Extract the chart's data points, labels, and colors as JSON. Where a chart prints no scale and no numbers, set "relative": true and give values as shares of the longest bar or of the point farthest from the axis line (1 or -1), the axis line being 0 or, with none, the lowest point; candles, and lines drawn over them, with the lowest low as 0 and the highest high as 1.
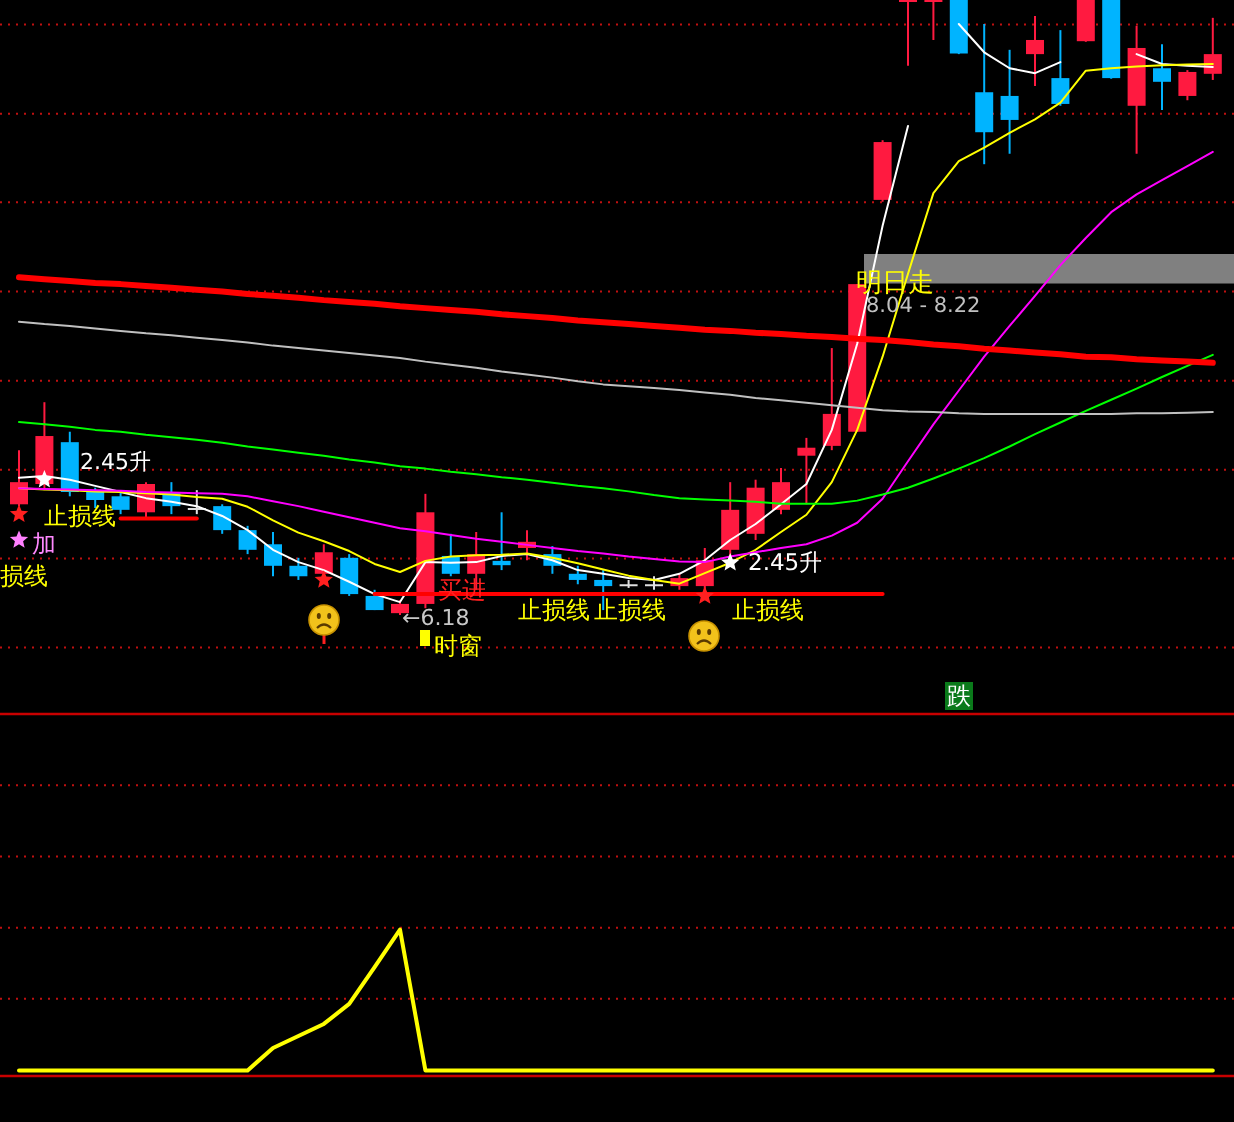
{
  "chart_data": [
    {
      "type": "candlestick",
      "relative": true,
      "categories": [
        null,
        null,
        null,
        null,
        null,
        null,
        null,
        null,
        null,
        null,
        null,
        null,
        null,
        null,
        null,
        null,
        null,
        null,
        null,
        null,
        null,
        null,
        null,
        null,
        null,
        null,
        null,
        null,
        null,
        null,
        null,
        null,
        null,
        null,
        null,
        null,
        null,
        null,
        null,
        null,
        null,
        null,
        null,
        null,
        null,
        null,
        null,
        null
      ],
      "ohlc": [
        [
          0.18,
          0.268,
          0.177,
          0.216
        ],
        [
          0.213,
          0.346,
          0.203,
          0.291
        ],
        [
          0.281,
          0.298,
          0.193,
          0.2
        ],
        [
          0.2,
          0.207,
          0.174,
          0.187
        ],
        [
          0.193,
          0.2,
          0.164,
          0.171
        ],
        [
          0.167,
          0.216,
          0.158,
          0.213
        ],
        [
          0.2,
          0.216,
          0.164,
          0.177
        ],
        [
          0.174,
          0.203,
          0.164,
          0.174
        ],
        [
          0.177,
          0.18,
          0.132,
          0.138
        ],
        [
          0.138,
          0.145,
          0.099,
          0.106
        ],
        [
          0.115,
          0.135,
          0.063,
          0.08
        ],
        [
          0.08,
          0.093,
          0.057,
          0.063
        ],
        [
          0.067,
          0.115,
          0.057,
          0.102
        ],
        [
          0.093,
          0.099,
          0.031,
          0.034
        ],
        [
          0.031,
          0.041,
          0.008,
          0.008
        ],
        [
          0.003,
          0.024,
          0,
          0.018
        ],
        [
          0.018,
          0.197,
          0.011,
          0.167
        ],
        [
          0.096,
          0.132,
          0.063,
          0.067
        ],
        [
          0.067,
          0.135,
          0.041,
          0.099
        ],
        [
          0.088,
          0.167,
          0.073,
          0.081
        ],
        [
          0.109,
          0.138,
          0.089,
          0.119
        ],
        [
          0.099,
          0.112,
          0.067,
          0.08
        ],
        [
          0.067,
          0.08,
          0.05,
          0.057
        ],
        [
          0.057,
          0.073,
          0.008,
          0.047
        ],
        [
          0.05,
          0.057,
          0.044,
          0.05
        ],
        [
          0.05,
          0.063,
          0.041,
          0.05
        ],
        [
          0.047,
          0.067,
          0.041,
          0.06
        ],
        [
          0.047,
          0.109,
          0.024,
          0.089
        ],
        [
          0.106,
          0.216,
          0.089,
          0.171
        ],
        [
          0.132,
          0.22,
          0.122,
          0.207
        ],
        [
          0.171,
          0.239,
          0.164,
          0.216
        ],
        [
          0.259,
          0.288,
          0.18,
          0.272
        ],
        [
          0.275,
          0.434,
          0.268,
          0.327
        ],
        [
          0.298,
          0.538,
          0.298,
          0.538
        ],
        [
          0.675,
          0.772,
          0.672,
          0.769
        ],
        [
          1,
          1,
          0.893,
          1
        ],
        [
          1,
          1,
          0.935,
          1
        ],
        [
          1,
          1,
          0.912,
          0.913
        ],
        [
          0.85,
          0.961,
          0.733,
          0.785
        ],
        [
          0.844,
          0.919,
          0.75,
          0.805
        ],
        [
          0.912,
          0.974,
          0.86,
          0.935
        ],
        [
          0.873,
          0.951,
          0.828,
          0.831
        ],
        [
          0.933,
          1,
          0.932,
          1
        ],
        [
          1,
          1,
          0.872,
          0.873
        ],
        [
          0.828,
          0.958,
          0.75,
          0.922
        ],
        [
          0.889,
          0.928,
          0.821,
          0.867
        ],
        [
          0.844,
          0.886,
          0.837,
          0.883
        ],
        [
          0.88,
          0.971,
          0.87,
          0.912
        ]
      ],
      "colors": [
        "#ff1a40",
        "#ff1a40",
        "#00b4ff",
        "#00b4ff",
        "#00b4ff",
        "#ff1a40",
        "#00b4ff",
        "#e0e0e0",
        "#00b4ff",
        "#00b4ff",
        "#00b4ff",
        "#00b4ff",
        "#ff1a40",
        "#00b4ff",
        "#00b4ff",
        "#ff1a40",
        "#ff1a40",
        "#00b4ff",
        "#ff1a40",
        "#00b4ff",
        "#ff1a40",
        "#00b4ff",
        "#00b4ff",
        "#00b4ff",
        "#e0e0e0",
        "#e0e0e0",
        "#ff1a40",
        "#ff1a40",
        "#ff1a40",
        "#ff1a40",
        "#ff1a40",
        "#ff1a40",
        "#ff1a40",
        "#ff1a40",
        "#ff1a40",
        "#ff1a40",
        "#ff1a40",
        "#00b4ff",
        "#00b4ff",
        "#00b4ff",
        "#ff1a40",
        "#00b4ff",
        "#ff1a40",
        "#00b4ff",
        "#ff1a40",
        "#00b4ff",
        "#ff1a40",
        "#ff1a40"
      ],
      "series": [
        {
          "type": "line",
          "color": "#ffffff",
          "values": [
            0.223,
            0.226,
            0.22,
            0.21,
            0.2,
            0.19,
            0.184,
            0.177,
            0.161,
            0.138,
            0.106,
            0.086,
            0.073,
            0.054,
            0.034,
            0.021,
            0.086,
            0.085,
            0.086,
            0.096,
            0.099,
            0.089,
            0.073,
            0.067,
            0.06,
            0.057,
            0.067,
            0.089,
            0.122,
            0.148,
            0.18,
            0.213,
            0.301,
            0.441,
            0.633,
            0.795,
            null,
            0.961,
            0.915,
            0.889,
            0.881,
            0.899,
            null,
            null,
            0.912,
            0.896,
            0.893,
            0.891
          ]
        },
        {
          "type": "line",
          "color": "#ffff00",
          "values": [
            0.206,
            0.204,
            0.203,
            0.201,
            0.2,
            0.198,
            0.196,
            0.192,
            0.189,
            0.176,
            0.154,
            0.134,
            0.12,
            0.104,
            0.083,
            0.07,
            0.088,
            0.095,
            0.097,
            0.098,
            0.1,
            0.093,
            0.084,
            0.074,
            0.064,
            0.057,
            0.051,
            0.068,
            0.085,
            0.106,
            0.135,
            0.163,
            0.216,
            0.301,
            0.42,
            0.555,
            0.686,
            0.738,
            0.76,
            0.784,
            0.806,
            0.833,
            0.885,
            0.889,
            0.892,
            0.894,
            0.895,
            0.896
          ]
        },
        {
          "type": "line",
          "color": "#ff00ff",
          "values": [
            0.206,
            0.205,
            0.204,
            0.203,
            0.202,
            0.2,
            0.199,
            0.198,
            0.197,
            0.193,
            0.185,
            0.177,
            0.168,
            0.159,
            0.15,
            0.141,
            0.136,
            0.13,
            0.124,
            0.119,
            0.114,
            0.109,
            0.104,
            0.1,
            0.095,
            0.091,
            0.087,
            0.086,
            0.095,
            0.102,
            0.109,
            0.115,
            0.129,
            0.15,
            0.189,
            0.25,
            0.31,
            0.365,
            0.42,
            0.47,
            0.519,
            0.569,
            0.613,
            0.655,
            0.684,
            0.707,
            0.73,
            0.753
          ]
        },
        {
          "type": "line",
          "color": "#00ff00",
          "values": [
            0.314,
            0.31,
            0.306,
            0.301,
            0.298,
            0.293,
            0.289,
            0.285,
            0.28,
            0.274,
            0.269,
            0.264,
            0.259,
            0.253,
            0.248,
            0.242,
            0.238,
            0.233,
            0.229,
            0.224,
            0.22,
            0.215,
            0.21,
            0.206,
            0.201,
            0.195,
            0.19,
            0.188,
            0.186,
            0.184,
            0.181,
            0.181,
            0.181,
            0.186,
            0.196,
            0.207,
            0.222,
            0.238,
            0.255,
            0.274,
            0.294,
            0.313,
            0.332,
            0.35,
            0.368,
            0.387,
            0.405,
            0.423
          ]
        },
        {
          "type": "line",
          "color": "#c0c0c0",
          "values": [
            0.477,
            0.473,
            0.47,
            0.466,
            0.462,
            0.458,
            0.455,
            0.451,
            0.447,
            0.443,
            0.438,
            0.434,
            0.43,
            0.426,
            0.422,
            0.418,
            0.412,
            0.407,
            0.402,
            0.396,
            0.391,
            0.386,
            0.38,
            0.375,
            0.372,
            0.369,
            0.366,
            0.362,
            0.358,
            0.353,
            0.349,
            0.345,
            0.341,
            0.337,
            0.333,
            0.331,
            0.33,
            0.328,
            0.327,
            0.327,
            0.327,
            0.327,
            0.327,
            0.327,
            0.328,
            0.328,
            0.329,
            0.33
          ]
        },
        {
          "type": "line",
          "color": "#ff0000",
          "values": [
            0.549,
            0.546,
            0.543,
            0.54,
            0.538,
            0.535,
            0.532,
            0.529,
            0.526,
            0.522,
            0.519,
            0.516,
            0.512,
            0.509,
            0.506,
            0.502,
            0.499,
            0.496,
            0.493,
            0.489,
            0.486,
            0.483,
            0.479,
            0.476,
            0.473,
            0.47,
            0.467,
            0.464,
            0.462,
            0.459,
            0.457,
            0.454,
            0.452,
            0.449,
            0.447,
            0.444,
            0.44,
            0.437,
            0.433,
            0.43,
            0.427,
            0.424,
            0.42,
            0.419,
            0.416,
            0.414,
            0.412,
            0.41
          ]
        },
        {
          "type": "line",
          "color": "#ff0000",
          "values": [
            null,
            null,
            null,
            null,
            0.157,
            0.157,
            0.157,
            0.157,
            null,
            null,
            null,
            null,
            null,
            null,
            null,
            null,
            null,
            null,
            null,
            null,
            null,
            null,
            null,
            null,
            null,
            null,
            null,
            null,
            null,
            null,
            null,
            null,
            null,
            null,
            null,
            null,
            null,
            null,
            null,
            null,
            null,
            null,
            null,
            null,
            null,
            null,
            null,
            null
          ]
        },
        {
          "type": "line",
          "color": "#ff0000",
          "values": [
            null,
            null,
            null,
            null,
            null,
            null,
            null,
            null,
            null,
            null,
            null,
            null,
            null,
            null,
            0.034,
            0.034,
            0.034,
            0.034,
            0.034,
            0.034,
            0.034,
            0.034,
            0.034,
            0.034,
            0.034,
            0.034,
            0.034,
            0.034,
            0.034,
            0.034,
            0.034,
            0.034,
            0.034,
            0.034,
            0.034,
            null,
            null,
            null,
            null,
            null,
            null,
            null,
            null,
            null,
            null,
            null,
            null,
            null
          ]
        },
        {
          "type": "scatter",
          "marker": "star",
          "color": "#ff2020",
          "values": [
            0.164,
            null,
            null,
            null,
            null,
            null,
            null,
            null,
            null,
            null,
            null,
            null,
            0.057,
            null,
            null,
            null,
            null,
            null,
            null,
            null,
            null,
            null,
            null,
            null,
            null,
            null,
            null,
            0.031,
            null,
            null,
            null,
            null,
            null,
            null,
            null,
            null,
            null,
            null,
            null,
            null,
            null,
            null,
            null,
            null,
            null,
            null,
            null,
            null
          ]
        },
        {
          "type": "scatter",
          "marker": "star",
          "color": "#ffffff",
          "values": [
            null,
            0.22,
            null,
            null,
            null,
            null,
            null,
            null,
            null,
            null,
            null,
            null,
            null,
            null,
            null,
            null,
            null,
            null,
            null,
            null,
            null,
            null,
            null,
            null,
            null,
            null,
            null,
            null,
            0.085,
            null,
            null,
            null,
            null,
            null,
            null,
            null,
            null,
            null,
            null,
            null,
            null,
            null,
            null,
            null,
            null,
            null,
            null,
            null
          ]
        },
        {
          "type": "scatter",
          "marker": "star",
          "color": "#ff80ff",
          "values": [
            0.122,
            null,
            null,
            null,
            null,
            null,
            null,
            null,
            null,
            null,
            null,
            null,
            null,
            null,
            null,
            null,
            null,
            null,
            null,
            null,
            null,
            null,
            null,
            null,
            null,
            null,
            null,
            null,
            null,
            null,
            null,
            null,
            null,
            null,
            null,
            null,
            null,
            null,
            null,
            null,
            null,
            null,
            null,
            null,
            null,
            null,
            null,
            null
          ]
        }
      ],
      "bands": [
        {
          "axis": "y",
          "from": 0.539,
          "to": 0.587,
          "color": "#808080"
        }
      ],
      "ref_lines": [
        {
          "axis": "y",
          "value": 0.96,
          "color": "#c01010",
          "line_style": "dotted"
        },
        {
          "axis": "y",
          "value": 0.815,
          "color": "#c01010",
          "line_style": "dotted"
        },
        {
          "axis": "y",
          "value": 0.671,
          "color": "#c01010",
          "line_style": "dotted"
        },
        {
          "axis": "y",
          "value": 0.526,
          "color": "#c01010",
          "line_style": "dotted"
        },
        {
          "axis": "y",
          "value": 0.381,
          "color": "#c01010",
          "line_style": "dotted"
        },
        {
          "axis": "y",
          "value": 0.236,
          "color": "#c01010",
          "line_style": "dotted"
        },
        {
          "axis": "y",
          "value": 0.092,
          "color": "#c01010",
          "line_style": "dotted"
        },
        {
          "axis": "y",
          "value": -0.053,
          "color": "#c01010",
          "line_style": "dotted"
        }
      ],
      "annotations": [
        "损线",
        {
          "text": "2.45升",
          "y": 0.22
        },
        "止损线",
        "加",
        "买进",
        "←6.18",
        "时窗",
        {
          "text": "止损线",
          "y": 0.034
        },
        {
          "text": "止损线",
          "y": 0.034
        },
        "2.45升",
        {
          "text": "止损线",
          "y": 0.031
        },
        {
          "text": "明日走",
          "y": 0.539
        },
        {
          "text": "8.04 - 8.22",
          "y": 0.539
        },
        "跌"
      ]
    },
    {
      "type": "line",
      "relative": true,
      "categories": [
        null,
        null,
        null,
        null,
        null,
        null,
        null,
        null,
        null,
        null,
        null,
        null,
        null,
        null,
        null,
        null,
        null,
        null,
        null,
        null,
        null,
        null,
        null,
        null,
        null,
        null,
        null,
        null,
        null,
        null,
        null,
        null,
        null,
        null,
        null,
        null,
        null,
        null,
        null,
        null,
        null,
        null,
        null,
        null,
        null,
        null,
        null,
        null
      ],
      "series": [
        {
          "color": "#ffff00",
          "values": [
            0,
            0,
            0,
            0,
            0,
            0,
            0,
            0,
            0,
            0,
            0.159,
            0.244,
            0.33,
            0.472,
            0.734,
            1,
            0,
            0,
            0,
            0,
            0,
            0,
            0,
            0,
            0,
            0,
            0,
            0,
            0,
            0,
            0,
            0,
            0,
            0,
            0,
            0,
            0,
            0,
            0,
            0,
            0,
            0,
            0,
            0,
            0,
            0,
            0,
            0
          ]
        }
      ],
      "ref_lines": [
        {
          "axis": "y",
          "value": 2.026,
          "color": "#c01010",
          "line_style": "dotted"
        },
        {
          "axis": "y",
          "value": 1.52,
          "color": "#c01010",
          "line_style": "dotted"
        },
        {
          "axis": "y",
          "value": 1.014,
          "color": "#c01010",
          "line_style": "dotted"
        },
        {
          "axis": "y",
          "value": 0.509,
          "color": "#c01010",
          "line_style": "dotted"
        }
      ]
    }
  ]
}
